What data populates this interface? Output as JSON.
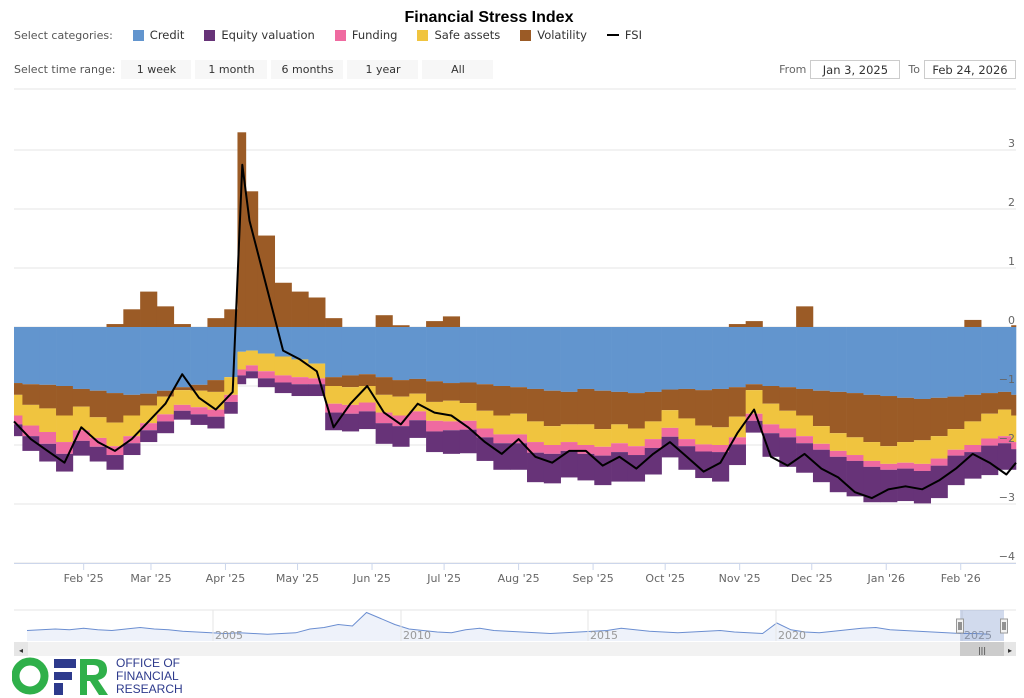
{
  "title": "Financial Stress Index",
  "legend": {
    "label": "Select categories:",
    "items": [
      {
        "name": "Credit",
        "color": "#6295ce",
        "type": "area"
      },
      {
        "name": "Equity valuation",
        "color": "#673378",
        "type": "area"
      },
      {
        "name": "Funding",
        "color": "#ef6aa0",
        "type": "area"
      },
      {
        "name": "Safe assets",
        "color": "#f0c43f",
        "type": "area"
      },
      {
        "name": "Volatility",
        "color": "#9b5b26",
        "type": "area"
      },
      {
        "name": "FSI",
        "color": "#000000",
        "type": "line"
      }
    ]
  },
  "range_selector": {
    "label": "Select time range:",
    "buttons": [
      "1 week",
      "1 month",
      "6 months",
      "1 year",
      "All"
    ]
  },
  "date_range": {
    "from_label": "From",
    "from_value": "Jan 3, 2025",
    "to_label": "To",
    "to_value": "Feb 24, 2026"
  },
  "navigator": {
    "year_labels": [
      "2005",
      "2010",
      "2015",
      "2020",
      "2025"
    ],
    "series": [
      0.2,
      0.3,
      0.4,
      0.3,
      0.5,
      0.3,
      0.2,
      0.4,
      0.6,
      0.4,
      0.3,
      0.1,
      0.0,
      -0.1,
      -0.2,
      -0.1,
      -0.2,
      -0.3,
      -0.2,
      -0.1,
      0.4,
      0.6,
      1.0,
      0.8,
      2.6,
      1.8,
      1.0,
      0.4,
      0.2,
      0.0,
      -0.1,
      0.3,
      0.5,
      0.2,
      0.1,
      0.0,
      -0.1,
      -0.2,
      -0.1,
      0.0,
      0.1,
      0.2,
      0.5,
      0.3,
      0.1,
      0.0,
      -0.1,
      0.0,
      0.1,
      0.2,
      0.0,
      -0.1,
      -0.2,
      1.2,
      0.3,
      0.0,
      -0.1,
      0.1,
      0.3,
      0.5,
      0.6,
      0.3,
      0.2,
      0.1,
      0.0,
      -0.1,
      -0.2,
      -0.2,
      -0.3
    ],
    "handle_glyph": "|||",
    "left_arrow": "◂",
    "right_arrow": "▸"
  },
  "logo": {
    "letters": "OFR",
    "line1": "OFFICE OF",
    "line2": "FINANCIAL",
    "line3": "RESEARCH"
  },
  "chart_data": {
    "type": "area",
    "stacked": true,
    "title": "Financial Stress Index",
    "xlabel": "",
    "ylabel": "",
    "ylim": [
      -4,
      3.5
    ],
    "yticks": [
      3,
      2,
      1,
      0,
      -1,
      -2,
      -3,
      -4
    ],
    "xrange": [
      "2025-01-03",
      "2026-02-24"
    ],
    "xticks": [
      {
        "date": "2025-02-01",
        "label": "Feb '25"
      },
      {
        "date": "2025-03-01",
        "label": "Mar '25"
      },
      {
        "date": "2025-04-01",
        "label": "Apr '25"
      },
      {
        "date": "2025-05-01",
        "label": "May '25"
      },
      {
        "date": "2025-06-01",
        "label": "Jun '25"
      },
      {
        "date": "2025-07-01",
        "label": "Jul '25"
      },
      {
        "date": "2025-08-01",
        "label": "Aug '25"
      },
      {
        "date": "2025-09-01",
        "label": "Sep '25"
      },
      {
        "date": "2025-10-01",
        "label": "Oct '25"
      },
      {
        "date": "2025-11-01",
        "label": "Nov '25"
      },
      {
        "date": "2025-12-01",
        "label": "Dec '25"
      },
      {
        "date": "2026-01-01",
        "label": "Jan '26"
      },
      {
        "date": "2026-02-01",
        "label": "Feb '26"
      }
    ],
    "grid": true,
    "legend_position": "top",
    "x": [
      "2025-01-03",
      "2025-01-10",
      "2025-01-17",
      "2025-01-24",
      "2025-01-31",
      "2025-02-07",
      "2025-02-14",
      "2025-02-21",
      "2025-02-28",
      "2025-03-07",
      "2025-03-14",
      "2025-03-21",
      "2025-03-28",
      "2025-04-04",
      "2025-04-08",
      "2025-04-11",
      "2025-04-18",
      "2025-04-25",
      "2025-05-02",
      "2025-05-09",
      "2025-05-16",
      "2025-05-23",
      "2025-05-30",
      "2025-06-06",
      "2025-06-13",
      "2025-06-20",
      "2025-06-27",
      "2025-07-04",
      "2025-07-11",
      "2025-07-18",
      "2025-07-25",
      "2025-08-01",
      "2025-08-08",
      "2025-08-15",
      "2025-08-22",
      "2025-08-29",
      "2025-09-05",
      "2025-09-12",
      "2025-09-19",
      "2025-09-26",
      "2025-10-03",
      "2025-10-10",
      "2025-10-17",
      "2025-10-24",
      "2025-10-31",
      "2025-11-07",
      "2025-11-14",
      "2025-11-21",
      "2025-11-28",
      "2025-12-05",
      "2025-12-12",
      "2025-12-19",
      "2025-12-26",
      "2026-01-02",
      "2026-01-09",
      "2026-01-16",
      "2026-01-23",
      "2026-01-30",
      "2026-02-06",
      "2026-02-13",
      "2026-02-20",
      "2026-02-24"
    ],
    "series": [
      {
        "name": "Credit",
        "values": [
          -0.95,
          -0.97,
          -0.98,
          -1.0,
          -1.05,
          -1.08,
          -1.12,
          -1.15,
          -1.13,
          -1.08,
          -1.02,
          -0.98,
          -0.9,
          -0.85,
          -0.42,
          -0.4,
          -0.45,
          -0.5,
          -0.55,
          -0.62,
          -0.85,
          -0.82,
          -0.8,
          -0.85,
          -0.9,
          -0.88,
          -0.92,
          -0.95,
          -0.94,
          -0.97,
          -1.0,
          -1.02,
          -1.05,
          -1.08,
          -1.1,
          -1.05,
          -1.08,
          -1.1,
          -1.12,
          -1.1,
          -1.06,
          -1.05,
          -1.07,
          -1.05,
          -1.02,
          -0.97,
          -1.0,
          -1.02,
          -1.05,
          -1.08,
          -1.1,
          -1.12,
          -1.15,
          -1.17,
          -1.2,
          -1.22,
          -1.2,
          -1.18,
          -1.15,
          -1.12,
          -1.1,
          -1.15
        ]
      },
      {
        "name": "Volatility",
        "values_negative": [
          -0.2,
          -0.35,
          -0.4,
          -0.5,
          -0.3,
          -0.45,
          -0.5,
          -0.35,
          -0.2,
          -0.1,
          -0.05,
          -0.1,
          -0.2,
          0,
          0,
          0,
          0,
          0,
          0,
          0,
          -0.15,
          -0.2,
          -0.2,
          -0.3,
          -0.28,
          -0.25,
          -0.35,
          -0.3,
          -0.35,
          -0.45,
          -0.5,
          -0.45,
          -0.55,
          -0.6,
          -0.55,
          -0.6,
          -0.65,
          -0.55,
          -0.6,
          -0.5,
          -0.35,
          -0.5,
          -0.6,
          -0.65,
          -0.5,
          -0.1,
          -0.3,
          -0.4,
          -0.45,
          -0.6,
          -0.7,
          -0.75,
          -0.8,
          -0.85,
          -0.75,
          -0.7,
          -0.65,
          -0.55,
          -0.45,
          -0.35,
          -0.3,
          -0.35
        ],
        "values_positive": [
          0,
          0,
          0,
          0,
          0,
          0,
          0.05,
          0.3,
          0.6,
          0.35,
          0.05,
          0,
          0.15,
          0.3,
          3.3,
          2.3,
          1.55,
          0.75,
          0.6,
          0.5,
          0.15,
          0,
          0,
          0.2,
          0.03,
          0,
          0.1,
          0.18,
          0,
          0,
          0,
          0,
          0,
          0,
          0,
          0,
          0,
          0,
          0,
          0,
          0,
          0,
          0,
          0,
          0.05,
          0.1,
          0,
          0,
          0.35,
          0,
          0,
          0,
          0,
          0,
          0,
          0,
          0,
          0,
          0.12,
          0,
          0,
          0.03
        ]
      },
      {
        "name": "Safe assets",
        "values": [
          -0.35,
          -0.35,
          -0.4,
          -0.45,
          -0.4,
          -0.35,
          -0.4,
          -0.35,
          -0.3,
          -0.3,
          -0.25,
          -0.28,
          -0.3,
          -0.3,
          -0.3,
          -0.25,
          -0.3,
          -0.32,
          -0.3,
          -0.25,
          -0.3,
          -0.3,
          -0.28,
          -0.3,
          -0.32,
          -0.3,
          -0.32,
          -0.35,
          -0.3,
          -0.3,
          -0.32,
          -0.35,
          -0.35,
          -0.32,
          -0.3,
          -0.35,
          -0.3,
          -0.32,
          -0.3,
          -0.3,
          -0.3,
          -0.35,
          -0.32,
          -0.3,
          -0.35,
          -0.4,
          -0.35,
          -0.3,
          -0.35,
          -0.3,
          -0.3,
          -0.3,
          -0.32,
          -0.3,
          -0.35,
          -0.4,
          -0.38,
          -0.35,
          -0.4,
          -0.42,
          -0.45,
          -0.45
        ]
      },
      {
        "name": "Funding",
        "values": [
          -0.15,
          -0.18,
          -0.2,
          -0.2,
          -0.18,
          -0.15,
          -0.15,
          -0.12,
          -0.12,
          -0.12,
          -0.1,
          -0.12,
          -0.12,
          -0.12,
          -0.1,
          -0.1,
          -0.12,
          -0.12,
          -0.12,
          -0.1,
          -0.15,
          -0.15,
          -0.15,
          -0.18,
          -0.18,
          -0.15,
          -0.18,
          -0.15,
          -0.15,
          -0.15,
          -0.15,
          -0.15,
          -0.18,
          -0.15,
          -0.15,
          -0.15,
          -0.15,
          -0.15,
          -0.15,
          -0.15,
          -0.15,
          -0.12,
          -0.12,
          -0.12,
          -0.12,
          -0.12,
          -0.15,
          -0.15,
          -0.12,
          -0.1,
          -0.1,
          -0.1,
          -0.1,
          -0.1,
          -0.1,
          -0.12,
          -0.12,
          -0.1,
          -0.12,
          -0.12,
          -0.12,
          -0.12
        ]
      },
      {
        "name": "Equity valuation",
        "values": [
          -0.2,
          -0.25,
          -0.3,
          -0.3,
          -0.25,
          -0.25,
          -0.25,
          -0.2,
          -0.2,
          -0.2,
          -0.15,
          -0.18,
          -0.2,
          -0.2,
          -0.15,
          -0.12,
          -0.15,
          -0.18,
          -0.2,
          -0.2,
          -0.3,
          -0.3,
          -0.3,
          -0.35,
          -0.35,
          -0.3,
          -0.35,
          -0.4,
          -0.4,
          -0.4,
          -0.45,
          -0.45,
          -0.5,
          -0.5,
          -0.45,
          -0.45,
          -0.5,
          -0.5,
          -0.45,
          -0.45,
          -0.35,
          -0.4,
          -0.45,
          -0.5,
          -0.35,
          -0.2,
          -0.4,
          -0.5,
          -0.5,
          -0.55,
          -0.6,
          -0.6,
          -0.6,
          -0.55,
          -0.55,
          -0.55,
          -0.55,
          -0.5,
          -0.45,
          -0.5,
          -0.45,
          -0.35
        ]
      },
      {
        "name": "FSI",
        "type": "line",
        "values": [
          -1.6,
          -1.9,
          -2.1,
          -2.3,
          -1.7,
          -1.95,
          -2.1,
          -1.9,
          -1.6,
          -1.3,
          -0.8,
          -1.2,
          -1.4,
          -1.1,
          2.75,
          1.8,
          0.7,
          -0.4,
          -0.55,
          -0.75,
          -1.7,
          -1.3,
          -1.0,
          -1.45,
          -1.65,
          -1.3,
          -1.45,
          -1.5,
          -1.7,
          -1.95,
          -2.15,
          -1.9,
          -2.2,
          -2.3,
          -2.1,
          -2.1,
          -2.35,
          -2.2,
          -2.4,
          -2.15,
          -1.95,
          -2.2,
          -2.45,
          -2.3,
          -1.8,
          -1.4,
          -2.2,
          -2.35,
          -2.15,
          -2.4,
          -2.55,
          -2.8,
          -2.9,
          -2.75,
          -2.7,
          -2.75,
          -2.6,
          -2.4,
          -2.15,
          -2.3,
          -2.5,
          -2.3
        ]
      }
    ]
  }
}
